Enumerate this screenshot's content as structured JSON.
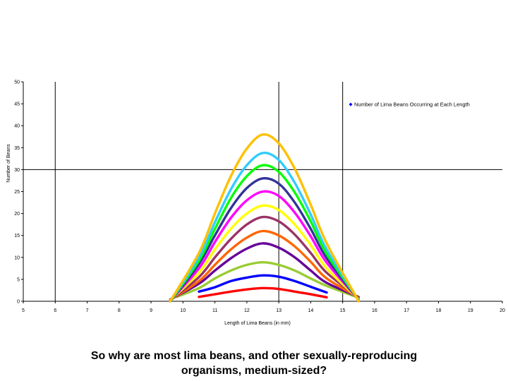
{
  "chart_data": {
    "type": "line",
    "xlabel": "Length of Lima Beans (in mm)",
    "ylabel": "Number of Beans",
    "xlim": [
      5,
      20
    ],
    "ylim": [
      0,
      50
    ],
    "x_ticks": [
      5,
      6,
      7,
      8,
      9,
      10,
      11,
      12,
      13,
      14,
      15,
      16,
      17,
      18,
      19,
      20
    ],
    "y_ticks": [
      0,
      5,
      10,
      15,
      20,
      25,
      30,
      35,
      40,
      45,
      50
    ],
    "grid_x": [
      6,
      13,
      15
    ],
    "grid_y": [
      30
    ],
    "legend": {
      "position": "top-right",
      "label": "Number of Lima Beans Occurring at Each Length"
    },
    "series": [
      {
        "color": "#ff0000",
        "x": [
          10.5,
          11,
          11.5,
          12,
          12.5,
          13,
          13.5,
          14,
          14.5
        ],
        "values": [
          1.0,
          1.6,
          2.2,
          2.7,
          3.0,
          2.8,
          2.2,
          1.6,
          0.9
        ]
      },
      {
        "color": "#0000ff",
        "x": [
          10.5,
          11,
          11.5,
          12,
          12.5,
          13,
          13.5,
          14,
          14.5
        ],
        "values": [
          2.2,
          3.2,
          4.6,
          5.4,
          5.9,
          5.6,
          4.6,
          3.3,
          2.0
        ]
      },
      {
        "color": "#99cc33",
        "x": [
          9.8,
          10.5,
          11,
          11.5,
          12,
          12.5,
          13,
          13.5,
          14,
          14.5,
          15.5
        ],
        "values": [
          1.0,
          3.0,
          5.2,
          7.0,
          8.3,
          8.9,
          8.3,
          7.0,
          5.2,
          3.5,
          0.8
        ]
      },
      {
        "color": "#660099",
        "x": [
          9.6,
          10.5,
          11,
          11.5,
          12,
          12.5,
          13,
          13.5,
          14,
          14.5,
          15.5
        ],
        "values": [
          0.4,
          4.0,
          7.0,
          9.8,
          12.0,
          13.2,
          12.2,
          10.0,
          7.0,
          4.2,
          1.0
        ]
      },
      {
        "color": "#ff6600",
        "x": [
          9.6,
          10.5,
          11,
          11.5,
          12,
          12.5,
          13,
          13.5,
          14,
          14.5,
          15.5
        ],
        "values": [
          0.3,
          4.6,
          8.3,
          11.8,
          14.5,
          16.0,
          15.0,
          12.5,
          9.0,
          5.2,
          0.9
        ]
      },
      {
        "color": "#993366",
        "x": [
          9.6,
          10.5,
          11,
          11.5,
          12,
          12.5,
          13,
          13.5,
          14,
          14.5,
          15.5
        ],
        "values": [
          0.2,
          5.5,
          10.0,
          14.2,
          17.5,
          19.2,
          18.2,
          15.2,
          11.0,
          6.5,
          0.8
        ]
      },
      {
        "color": "#ffff00",
        "x": [
          9.6,
          10.5,
          11,
          11.5,
          12,
          12.5,
          13,
          13.5,
          14,
          14.5,
          15.5
        ],
        "values": [
          0.2,
          6.5,
          11.8,
          16.5,
          20.0,
          21.8,
          20.8,
          17.5,
          12.8,
          7.5,
          0.5
        ]
      },
      {
        "color": "#ff00ff",
        "x": [
          9.6,
          10.5,
          11,
          11.5,
          12,
          12.5,
          13,
          13.5,
          14,
          14.5,
          15.5
        ],
        "values": [
          0.1,
          7.5,
          13.5,
          19.0,
          23.0,
          25.0,
          24.0,
          20.2,
          14.8,
          8.8,
          0.4
        ]
      },
      {
        "color": "#333399",
        "x": [
          9.6,
          10.5,
          11,
          11.5,
          12,
          12.5,
          13,
          13.5,
          14,
          14.5,
          15.5
        ],
        "values": [
          0.0,
          8.5,
          15.0,
          21.2,
          25.8,
          28.0,
          26.8,
          22.5,
          16.5,
          9.8,
          0.3
        ]
      },
      {
        "color": "#00ff00",
        "x": [
          9.6,
          10.5,
          11,
          11.5,
          12,
          12.5,
          13,
          13.5,
          14,
          14.5,
          15.5
        ],
        "values": [
          0.0,
          9.2,
          16.5,
          23.5,
          28.5,
          31.0,
          29.5,
          24.8,
          18.2,
          10.8,
          0.3
        ]
      },
      {
        "color": "#33ccff",
        "x": [
          9.6,
          10.5,
          11,
          11.5,
          12,
          12.5,
          13,
          13.5,
          14,
          14.5,
          15.5
        ],
        "values": [
          0.0,
          10.0,
          18.0,
          25.5,
          31.0,
          33.8,
          32.2,
          27.0,
          19.8,
          11.8,
          0.2
        ]
      },
      {
        "color": "#ffc000",
        "x": [
          9.6,
          10.5,
          11,
          11.5,
          12,
          12.5,
          13,
          13.5,
          14,
          14.5,
          15.5
        ],
        "values": [
          0.0,
          11.0,
          20.0,
          28.5,
          34.8,
          38.0,
          36.0,
          30.2,
          22.0,
          13.2,
          0.0
        ]
      }
    ]
  },
  "caption": {
    "line1": "So why are most lima beans, and other sexually-reproducing",
    "line2": "organisms, medium-sized?"
  }
}
